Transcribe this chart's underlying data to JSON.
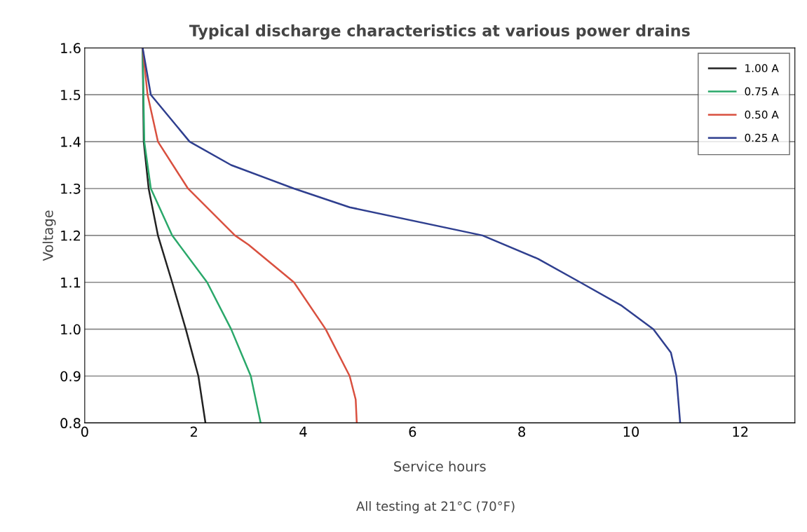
{
  "chart_data": {
    "type": "line",
    "title": "Typical discharge characteristics at various power drains",
    "xlabel": "Service hours",
    "ylabel": "Voltage",
    "annotations": [
      "All testing at 21°C (70°F)"
    ],
    "xlim": [
      0,
      13
    ],
    "xticks": [
      0,
      2,
      4,
      6,
      8,
      10,
      12
    ],
    "ylim": [
      0.8,
      1.6
    ],
    "yticks": [
      {
        "value": 0.8,
        "label": "0.8"
      },
      {
        "value": 0.9,
        "label": "0.9"
      },
      {
        "value": 1.0,
        "label": "1.0"
      },
      {
        "value": 1.1,
        "label": "1.1"
      },
      {
        "value": 1.2,
        "label": "1.2"
      },
      {
        "value": 1.3,
        "label": "1.3"
      },
      {
        "value": 1.4,
        "label": "1.4"
      },
      {
        "value": 1.5,
        "label": "1.5"
      },
      {
        "value": 1.6,
        "label": "1.6"
      }
    ],
    "grid": "y",
    "legend": "top right",
    "marker": "none",
    "line_style": "solid",
    "series": [
      {
        "name": "1.00 A",
        "color": "#222222",
        "x": [
          1.06,
          1.08,
          1.17,
          1.34,
          1.6,
          1.85,
          2.08,
          2.21
        ],
        "values": [
          1.6,
          1.4,
          1.3,
          1.2,
          1.1,
          1.0,
          0.9,
          0.8
        ]
      },
      {
        "name": "0.75 A",
        "color": "#2aa86a",
        "x": [
          1.06,
          1.09,
          1.21,
          1.6,
          2.24,
          2.68,
          3.04,
          3.22
        ],
        "values": [
          1.6,
          1.4,
          1.3,
          1.2,
          1.1,
          1.0,
          0.9,
          0.8
        ]
      },
      {
        "name": "0.50 A",
        "color": "#d9503f",
        "x": [
          1.06,
          1.15,
          1.34,
          1.89,
          2.75,
          3.0,
          3.83,
          4.41,
          4.85,
          4.96,
          4.98
        ],
        "values": [
          1.6,
          1.5,
          1.4,
          1.3,
          1.2,
          1.18,
          1.1,
          1.0,
          0.9,
          0.85,
          0.8
        ]
      },
      {
        "name": "0.25 A",
        "color": "#2f3f8f",
        "x": [
          1.06,
          1.21,
          1.92,
          2.68,
          3.83,
          4.85,
          7.28,
          8.3,
          9.07,
          9.83,
          10.41,
          10.73,
          10.83,
          10.9
        ],
        "values": [
          1.6,
          1.5,
          1.4,
          1.35,
          1.3,
          1.26,
          1.2,
          1.15,
          1.1,
          1.05,
          1.0,
          0.95,
          0.9,
          0.8
        ]
      }
    ]
  }
}
